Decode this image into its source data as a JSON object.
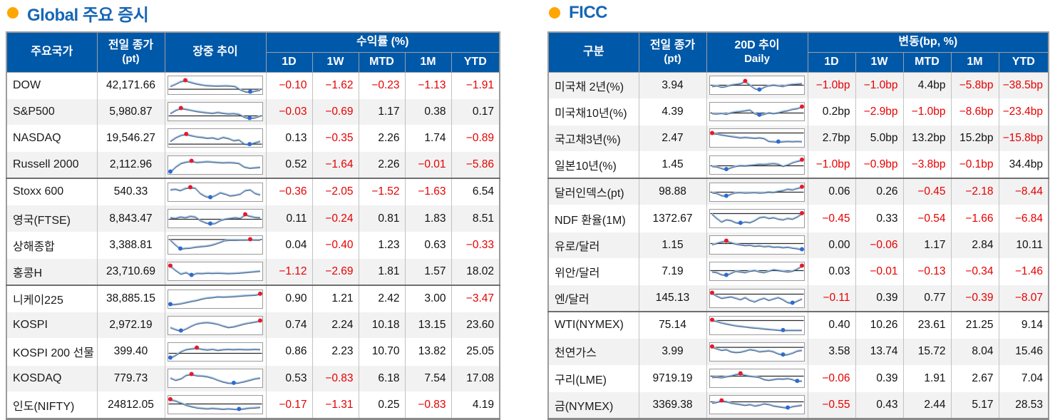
{
  "colors": {
    "header_bg": "#0058a8",
    "title_text": "#1766b5",
    "bullet": "#ffa600",
    "negative": "#e60000",
    "positive": "#111111",
    "row_alt": "#f2f2f2",
    "spark_line_light": "#9fc0e2",
    "spark_line_dark": "#1d3c66",
    "spark_ref": "#2b2b2b",
    "spark_max_dot": "#e8192c",
    "spark_min_dot": "#2e6bd0"
  },
  "left": {
    "title": "Global 주요 증시",
    "header": {
      "col_name": "주요국가",
      "col_close_l1": "전일 종가",
      "col_close_l2": "(pt)",
      "col_trend_l1": "장중 추이",
      "col_trend_l2": "",
      "span": "수익률 (%)",
      "subs": [
        "1D",
        "1W",
        "MTD",
        "1M",
        "YTD"
      ]
    },
    "stripe": "even",
    "group_starts": [
      4,
      8
    ],
    "rows": [
      {
        "name": "DOW",
        "close": "42,171.66",
        "vals": [
          "−0.10",
          "−1.62",
          "−0.23",
          "−1.13",
          "−1.91"
        ],
        "spark": {
          "ref": 0.78,
          "s": [
            0.55,
            0.4,
            0.22,
            0.15,
            0.25,
            0.35,
            0.42,
            0.48,
            0.5,
            0.52,
            0.52,
            0.5,
            0.52,
            0.55,
            0.78,
            0.92,
            0.95,
            0.88,
            0.8
          ]
        }
      },
      {
        "name": "S&P500",
        "close": "5,980.87",
        "vals": [
          "−0.03",
          "−0.69",
          "1.17",
          "0.38",
          "0.17"
        ],
        "spark": {
          "ref": 0.8,
          "s": [
            0.6,
            0.38,
            0.25,
            0.3,
            0.38,
            0.45,
            0.5,
            0.55,
            0.58,
            0.52,
            0.58,
            0.62,
            0.6,
            0.65,
            0.85,
            0.95,
            0.9,
            0.78
          ]
        }
      },
      {
        "name": "NASDAQ",
        "close": "19,546.27",
        "vals": [
          "0.13",
          "−0.35",
          "2.26",
          "1.74",
          "−0.89"
        ],
        "spark": {
          "ref": 0.93,
          "s": [
            0.7,
            0.45,
            0.28,
            0.22,
            0.3,
            0.38,
            0.42,
            0.48,
            0.45,
            0.55,
            0.42,
            0.5,
            0.65,
            0.6,
            0.88,
            0.93,
            0.8,
            0.7
          ]
        }
      },
      {
        "name": "Russell 2000",
        "close": "2,112.96",
        "vals": [
          "0.52",
          "−1.64",
          "2.26",
          "−0.01",
          "−5.86"
        ],
        "spark": {
          "ref": null,
          "s": [
            0.95,
            0.6,
            0.35,
            0.25,
            0.2,
            0.28,
            0.25,
            0.22,
            0.25,
            0.28,
            0.3,
            0.28,
            0.3,
            0.35,
            0.6,
            0.68,
            0.65,
            0.62
          ]
        }
      },
      {
        "name": "Stoxx 600",
        "close": "540.33",
        "vals": [
          "−0.36",
          "−2.05",
          "−1.52",
          "−1.63",
          "6.54"
        ],
        "spark": {
          "ref": null,
          "s": [
            0.3,
            0.25,
            0.35,
            0.2,
            0.15,
            0.18,
            0.55,
            0.75,
            0.85,
            0.7,
            0.5,
            0.6,
            0.72,
            0.68,
            0.6,
            0.35,
            0.3,
            0.55,
            0.65
          ]
        }
      },
      {
        "name": "영국(FTSE)",
        "close": "8,843.47",
        "vals": [
          "0.11",
          "−0.24",
          "0.81",
          "1.83",
          "8.51"
        ],
        "spark": {
          "ref": 0.55,
          "s": [
            0.4,
            0.45,
            0.35,
            0.4,
            0.3,
            0.35,
            0.6,
            0.75,
            0.85,
            0.8,
            0.6,
            0.5,
            0.45,
            0.4,
            0.45,
            0.2,
            0.3,
            0.38,
            0.4
          ]
        }
      },
      {
        "name": "상해종합",
        "close": "3,388.81",
        "vals": [
          "0.04",
          "−0.40",
          "1.23",
          "0.63",
          "−0.33"
        ],
        "spark": {
          "ref": 0.12,
          "s": [
            0.12,
            0.45,
            0.75,
            0.7,
            0.68,
            0.62,
            0.58,
            0.55,
            0.5,
            0.4,
            0.28,
            0.15,
            0.13,
            0.13,
            0.12,
            0.12,
            0.1,
            0.12,
            0.12
          ]
        }
      },
      {
        "name": "홍콩H",
        "close": "23,710.69",
        "vals": [
          "−1.12",
          "−2.69",
          "1.81",
          "1.57",
          "18.02"
        ],
        "spark": {
          "ref": null,
          "s": [
            0.1,
            0.4,
            0.65,
            0.55,
            0.75,
            0.6,
            0.62,
            0.58,
            0.6,
            0.58,
            0.6,
            0.62,
            0.6,
            0.58,
            0.55,
            0.52,
            0.48,
            0.45
          ]
        }
      },
      {
        "name": "니케이225",
        "close": "38,885.15",
        "vals": [
          "0.90",
          "1.21",
          "2.42",
          "3.00",
          "−3.47"
        ],
        "spark": {
          "ref": null,
          "s": [
            0.85,
            0.83,
            0.78,
            0.7,
            0.62,
            0.55,
            0.45,
            0.38,
            0.35,
            0.3,
            0.32,
            0.3,
            0.28,
            0.25,
            0.22,
            0.2,
            0.18,
            0.12
          ]
        }
      },
      {
        "name": "KOSPI",
        "close": "2,972.19",
        "vals": [
          "0.74",
          "2.24",
          "10.18",
          "13.15",
          "23.60"
        ],
        "spark": {
          "ref": null,
          "s": [
            0.6,
            0.75,
            0.85,
            0.7,
            0.5,
            0.35,
            0.28,
            0.25,
            0.3,
            0.38,
            0.5,
            0.6,
            0.55,
            0.45,
            0.35,
            0.28,
            0.22,
            0.15
          ]
        }
      },
      {
        "name": "KOSPI 200 선물",
        "close": "399.40",
        "vals": [
          "0.86",
          "2.23",
          "10.70",
          "13.82",
          "25.05"
        ],
        "spark": {
          "ref": 0.6,
          "s": [
            0.9,
            0.7,
            0.45,
            0.3,
            0.25,
            0.2,
            0.28,
            0.32,
            0.28,
            0.35,
            0.3,
            0.28,
            0.3,
            0.28,
            0.3,
            0.3,
            0.28,
            0.3
          ]
        }
      },
      {
        "name": "KOSDAQ",
        "close": "779.73",
        "vals": [
          "0.53",
          "−0.83",
          "6.18",
          "7.54",
          "17.08"
        ],
        "spark": {
          "ref": null,
          "s": [
            0.45,
            0.6,
            0.5,
            0.25,
            0.2,
            0.28,
            0.3,
            0.35,
            0.45,
            0.6,
            0.72,
            0.8,
            0.82,
            0.78,
            0.7,
            0.6,
            0.5,
            0.45
          ]
        }
      },
      {
        "name": "인도(NIFTY)",
        "close": "24812.05",
        "vals": [
          "−0.17",
          "−1.31",
          "0.25",
          "−0.83",
          "4.19"
        ],
        "spark": {
          "ref": 0.45,
          "s": [
            0.12,
            0.2,
            0.35,
            0.5,
            0.6,
            0.68,
            0.72,
            0.75,
            0.72,
            0.75,
            0.78,
            0.75,
            0.78,
            0.8,
            0.75,
            0.7,
            0.68,
            0.65
          ]
        }
      }
    ]
  },
  "right": {
    "title": "FICC",
    "header": {
      "col_name": "구분",
      "col_close_l1": "전일 종가",
      "col_close_l2": "(pt)",
      "col_trend_l1": "20D 추이",
      "col_trend_l2": "Daily",
      "span": "변동(bp, %)",
      "subs": [
        "1D",
        "1W",
        "MTD",
        "1M",
        "YTD"
      ]
    },
    "stripe": "odd",
    "group_starts": [
      4,
      9
    ],
    "rows": [
      {
        "name": "미국채 2년(%)",
        "close": "3.94",
        "vals": [
          "−1.0bp",
          "−1.0bp",
          "4.4bp",
          "−5.8bp",
          "−38.5bp"
        ],
        "spark": {
          "ref": 0.5,
          "s": [
            0.55,
            0.5,
            0.6,
            0.55,
            0.45,
            0.4,
            0.35,
            0.2,
            0.45,
            0.7,
            0.8,
            0.6,
            0.5,
            0.45,
            0.5,
            0.55,
            0.45,
            0.4,
            0.38,
            0.35
          ]
        }
      },
      {
        "name": "미국채10년(%)",
        "close": "4.39",
        "vals": [
          "0.2bp",
          "−2.9bp",
          "−1.0bp",
          "−8.6bp",
          "−23.4bp"
        ],
        "spark": {
          "ref": 0.6,
          "s": [
            0.6,
            0.62,
            0.58,
            0.65,
            0.55,
            0.48,
            0.45,
            0.4,
            0.35,
            0.6,
            0.72,
            0.65,
            0.55,
            0.6,
            0.55,
            0.45,
            0.4,
            0.3,
            0.25,
            0.15
          ]
        }
      },
      {
        "name": "국고채3년(%)",
        "close": "2.47",
        "vals": [
          "2.7bp",
          "5.0bp",
          "13.2bp",
          "15.2bp",
          "−15.8bp"
        ],
        "spark": {
          "ref": 0.15,
          "s": [
            0.15,
            0.18,
            0.25,
            0.3,
            0.35,
            0.4,
            0.45,
            0.42,
            0.45,
            0.48,
            0.45,
            0.5,
            0.7,
            0.72,
            0.75,
            0.72,
            0.7,
            0.72,
            0.7,
            0.72
          ]
        }
      },
      {
        "name": "일본10년(%)",
        "close": "1.45",
        "vals": [
          "−1.0bp",
          "−0.9bp",
          "−3.8bp",
          "−0.1bp",
          "34.4bp"
        ],
        "spark": {
          "ref": 0.55,
          "s": [
            0.55,
            0.58,
            0.7,
            0.78,
            0.65,
            0.55,
            0.5,
            0.52,
            0.48,
            0.45,
            0.4,
            0.42,
            0.38,
            0.35,
            0.4,
            0.55,
            0.45,
            0.3,
            0.2,
            0.12
          ]
        }
      },
      {
        "name": "달러인덱스(pt)",
        "close": "98.88",
        "vals": [
          "0.06",
          "0.26",
          "−0.45",
          "−2.18",
          "−8.44"
        ],
        "spark": {
          "ref": 0.5,
          "s": [
            0.5,
            0.55,
            0.7,
            0.75,
            0.6,
            0.5,
            0.48,
            0.52,
            0.5,
            0.48,
            0.52,
            0.5,
            0.45,
            0.48,
            0.4,
            0.35,
            0.25,
            0.3,
            0.2,
            0.12
          ]
        }
      },
      {
        "name": "NDF 환율(1M)",
        "close": "1372.67",
        "vals": [
          "−0.45",
          "0.33",
          "−0.54",
          "−1.66",
          "−6.84"
        ],
        "spark": {
          "ref": 0.15,
          "s": [
            0.15,
            0.45,
            0.7,
            0.55,
            0.6,
            0.75,
            0.8,
            0.7,
            0.75,
            0.6,
            0.4,
            0.35,
            0.45,
            0.4,
            0.5,
            0.55,
            0.45,
            0.5,
            0.35,
            0.12
          ]
        }
      },
      {
        "name": "유로/달러",
        "close": "1.15",
        "vals": [
          "0.00",
          "−0.06",
          "1.17",
          "2.84",
          "10.11"
        ],
        "spark": {
          "ref": 0.4,
          "s": [
            0.45,
            0.35,
            0.25,
            0.2,
            0.3,
            0.4,
            0.45,
            0.5,
            0.48,
            0.55,
            0.52,
            0.58,
            0.55,
            0.62,
            0.6,
            0.65,
            0.62,
            0.68,
            0.72,
            0.8
          ]
        }
      },
      {
        "name": "위안/달러",
        "close": "7.19",
        "vals": [
          "0.03",
          "−0.01",
          "−0.13",
          "−0.34",
          "−1.46"
        ],
        "spark": {
          "ref": 0.45,
          "s": [
            0.5,
            0.55,
            0.7,
            0.75,
            0.6,
            0.45,
            0.5,
            0.55,
            0.45,
            0.4,
            0.5,
            0.55,
            0.45,
            0.35,
            0.4,
            0.45,
            0.5,
            0.45,
            0.3,
            0.1
          ]
        }
      },
      {
        "name": "엔/달러",
        "close": "145.13",
        "vals": [
          "−0.11",
          "0.39",
          "0.77",
          "−0.39",
          "−8.07"
        ],
        "spark": {
          "ref": 0.2,
          "s": [
            0.1,
            0.3,
            0.45,
            0.4,
            0.35,
            0.45,
            0.55,
            0.4,
            0.6,
            0.7,
            0.55,
            0.45,
            0.6,
            0.5,
            0.4,
            0.55,
            0.75,
            0.8,
            0.65,
            0.5
          ]
        }
      },
      {
        "name": "WTI(NYMEX)",
        "close": "75.14",
        "vals": [
          "0.40",
          "10.26",
          "23.61",
          "21.25",
          "9.14"
        ],
        "spark": {
          "ref": 0.15,
          "s": [
            0.1,
            0.18,
            0.28,
            0.35,
            0.42,
            0.48,
            0.52,
            0.56,
            0.6,
            0.63,
            0.66,
            0.7,
            0.73,
            0.76,
            0.79,
            0.82,
            0.8,
            0.8,
            0.8,
            0.8
          ]
        }
      },
      {
        "name": "천연가스",
        "close": "3.99",
        "vals": [
          "3.58",
          "13.74",
          "15.72",
          "8.04",
          "15.46"
        ],
        "spark": {
          "ref": 0.18,
          "s": [
            0.12,
            0.25,
            0.35,
            0.3,
            0.45,
            0.5,
            0.48,
            0.4,
            0.3,
            0.35,
            0.45,
            0.42,
            0.38,
            0.45,
            0.6,
            0.68,
            0.65,
            0.55,
            0.4,
            0.35
          ]
        }
      },
      {
        "name": "구리(LME)",
        "close": "9719.19",
        "vals": [
          "−0.06",
          "0.39",
          "1.91",
          "2.67",
          "7.04"
        ],
        "spark": {
          "ref": 0.35,
          "s": [
            0.4,
            0.38,
            0.42,
            0.35,
            0.3,
            0.2,
            0.15,
            0.25,
            0.32,
            0.35,
            0.4,
            0.55,
            0.6,
            0.55,
            0.5,
            0.52,
            0.48,
            0.55,
            0.68,
            0.65
          ]
        }
      },
      {
        "name": "금(NYMEX)",
        "close": "3369.38",
        "vals": [
          "−0.55",
          "0.43",
          "2.44",
          "5.17",
          "28.53"
        ],
        "spark": {
          "ref": 0.3,
          "s": [
            0.35,
            0.3,
            0.2,
            0.25,
            0.35,
            0.4,
            0.45,
            0.5,
            0.45,
            0.55,
            0.5,
            0.4,
            0.45,
            0.55,
            0.6,
            0.65,
            0.7,
            0.6,
            0.55,
            0.5
          ]
        }
      }
    ]
  }
}
